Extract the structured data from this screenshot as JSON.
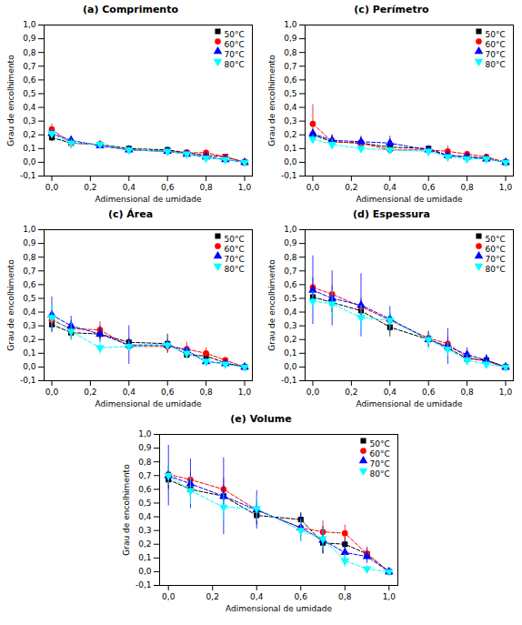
{
  "chart_data": [
    {
      "type": "line",
      "title": "(a) Comprimento",
      "xlabel": "Adimensional de umidade",
      "ylabel": "Grau de encolhimento",
      "x": [
        0.0,
        0.1,
        0.25,
        0.4,
        0.6,
        0.7,
        0.8,
        0.9,
        1.0
      ],
      "series": [
        {
          "name": "50°C",
          "color": "black",
          "marker": "square",
          "line_style": "dashed",
          "values": [
            0.18,
            0.14,
            0.13,
            0.1,
            0.09,
            0.07,
            0.05,
            0.04,
            0.0
          ],
          "yerr": [
            0.03,
            0.03,
            0.02,
            0.02,
            0.02,
            0.02,
            0.015,
            0.015,
            0.005
          ]
        },
        {
          "name": "60°C",
          "color": "red",
          "marker": "circle",
          "line_style": "dashed",
          "values": [
            0.24,
            0.14,
            0.13,
            0.09,
            0.08,
            0.07,
            0.07,
            0.04,
            0.0
          ],
          "yerr": [
            0.04,
            0.04,
            0.03,
            0.02,
            0.02,
            0.02,
            0.02,
            0.015,
            0.005
          ]
        },
        {
          "name": "70°C",
          "color": "blue",
          "marker": "triangle-up",
          "line_style": "dashed",
          "values": [
            0.21,
            0.16,
            0.12,
            0.09,
            0.08,
            0.06,
            0.04,
            0.02,
            0.0
          ],
          "yerr": [
            0.03,
            0.03,
            0.02,
            0.015,
            0.015,
            0.015,
            0.015,
            0.01,
            0.005
          ]
        },
        {
          "name": "80°C",
          "color": "cyan",
          "marker": "triangle-down",
          "line_style": "dashed",
          "values": [
            0.21,
            0.14,
            0.13,
            0.09,
            0.08,
            0.06,
            0.03,
            0.02,
            0.0
          ],
          "yerr": [
            0.03,
            0.03,
            0.02,
            0.02,
            0.015,
            0.015,
            0.015,
            0.01,
            0.005
          ]
        }
      ],
      "xlim": [
        -0.04,
        1.04
      ],
      "xticks": [
        {
          "value": 0.0,
          "label": "0,0"
        },
        {
          "value": 0.2,
          "label": "0,2"
        },
        {
          "value": 0.4,
          "label": "0,4"
        },
        {
          "value": 0.6,
          "label": "0,6"
        },
        {
          "value": 0.8,
          "label": "0,8"
        },
        {
          "value": 1.0,
          "label": "1,0"
        }
      ],
      "ylim": [
        -0.1,
        1.0
      ],
      "yticks": [
        {
          "value": -0.1,
          "label": "-0,1"
        },
        {
          "value": 0.0,
          "label": "0,0"
        },
        {
          "value": 0.1,
          "label": "0,1"
        },
        {
          "value": 0.2,
          "label": "0,2"
        },
        {
          "value": 0.3,
          "label": "0,3"
        },
        {
          "value": 0.4,
          "label": "0,4"
        },
        {
          "value": 0.5,
          "label": "0,5"
        },
        {
          "value": 0.6,
          "label": "0,6"
        },
        {
          "value": 0.7,
          "label": "0,7"
        },
        {
          "value": 0.8,
          "label": "0,8"
        },
        {
          "value": 0.9,
          "label": "0,9"
        },
        {
          "value": 1.0,
          "label": "1,0"
        }
      ],
      "legend": "upper right",
      "grid": false
    },
    {
      "type": "line",
      "title": "(c) Perímetro",
      "xlabel": "Adimensional de umidade",
      "ylabel": "Grau de encolhimento",
      "x": [
        0.0,
        0.1,
        0.25,
        0.4,
        0.6,
        0.7,
        0.8,
        0.9,
        1.0
      ],
      "series": [
        {
          "name": "50°C",
          "color": "black",
          "marker": "square",
          "line_style": "dashed",
          "values": [
            0.2,
            0.15,
            0.14,
            0.11,
            0.1,
            0.05,
            0.04,
            0.03,
            0.0
          ],
          "yerr": [
            0.03,
            0.04,
            0.03,
            0.02,
            0.02,
            0.02,
            0.02,
            0.015,
            0.005
          ]
        },
        {
          "name": "60°C",
          "color": "red",
          "marker": "circle",
          "line_style": "dashed",
          "values": [
            0.28,
            0.15,
            0.14,
            0.09,
            0.09,
            0.08,
            0.06,
            0.04,
            0.0
          ],
          "yerr": [
            0.14,
            0.05,
            0.04,
            0.02,
            0.025,
            0.04,
            0.02,
            0.015,
            0.005
          ]
        },
        {
          "name": "70°C",
          "color": "blue",
          "marker": "triangle-up",
          "line_style": "dashed",
          "values": [
            0.21,
            0.16,
            0.15,
            0.14,
            0.09,
            0.05,
            0.04,
            0.025,
            0.0
          ],
          "yerr": [
            0.03,
            0.04,
            0.04,
            0.05,
            0.02,
            0.02,
            0.015,
            0.01,
            0.005
          ]
        },
        {
          "name": "80°C",
          "color": "cyan",
          "marker": "triangle-down",
          "line_style": "dashed",
          "values": [
            0.17,
            0.13,
            0.1,
            0.09,
            0.08,
            0.04,
            0.025,
            0.025,
            0.0
          ],
          "yerr": [
            0.03,
            0.04,
            0.03,
            0.02,
            0.02,
            0.015,
            0.015,
            0.01,
            0.005
          ]
        }
      ],
      "xlim": [
        -0.04,
        1.04
      ],
      "xticks": [
        {
          "value": 0.0,
          "label": "0,0"
        },
        {
          "value": 0.2,
          "label": "0,2"
        },
        {
          "value": 0.4,
          "label": "0,4"
        },
        {
          "value": 0.6,
          "label": "0,6"
        },
        {
          "value": 0.8,
          "label": "0,8"
        },
        {
          "value": 1.0,
          "label": "1,0"
        }
      ],
      "ylim": [
        -0.1,
        1.0
      ],
      "yticks": [
        {
          "value": -0.1,
          "label": "-0,1"
        },
        {
          "value": 0.0,
          "label": "0,0"
        },
        {
          "value": 0.1,
          "label": "0,1"
        },
        {
          "value": 0.2,
          "label": "0,2"
        },
        {
          "value": 0.3,
          "label": "0,3"
        },
        {
          "value": 0.4,
          "label": "0,4"
        },
        {
          "value": 0.5,
          "label": "0,5"
        },
        {
          "value": 0.6,
          "label": "0,6"
        },
        {
          "value": 0.7,
          "label": "0,7"
        },
        {
          "value": 0.8,
          "label": "0,8"
        },
        {
          "value": 0.9,
          "label": "0,9"
        },
        {
          "value": 1.0,
          "label": "1,0"
        }
      ],
      "legend": "upper right",
      "grid": false
    },
    {
      "type": "line",
      "title": "(c) Área",
      "xlabel": "Adimensional de umidade",
      "ylabel": "Grau de encolhimento",
      "x": [
        0.0,
        0.1,
        0.25,
        0.4,
        0.6,
        0.7,
        0.8,
        0.9,
        1.0
      ],
      "series": [
        {
          "name": "50°C",
          "color": "black",
          "marker": "square",
          "line_style": "dashed",
          "values": [
            0.31,
            0.25,
            0.24,
            0.18,
            0.17,
            0.09,
            0.08,
            0.03,
            0.0
          ],
          "yerr": [
            0.05,
            0.05,
            0.04,
            0.03,
            0.07,
            0.03,
            0.04,
            0.02,
            0.005
          ]
        },
        {
          "name": "60°C",
          "color": "red",
          "marker": "circle",
          "line_style": "dashed",
          "values": [
            0.34,
            0.28,
            0.27,
            0.15,
            0.15,
            0.13,
            0.1,
            0.05,
            0.0
          ],
          "yerr": [
            0.04,
            0.06,
            0.06,
            0.04,
            0.04,
            0.05,
            0.04,
            0.02,
            0.005
          ]
        },
        {
          "name": "70°C",
          "color": "blue",
          "marker": "triangle-up",
          "line_style": "dashed",
          "values": [
            0.38,
            0.3,
            0.24,
            0.16,
            0.16,
            0.12,
            0.04,
            0.025,
            0.0
          ],
          "yerr": [
            0.13,
            0.07,
            0.06,
            0.14,
            0.04,
            0.03,
            0.025,
            0.015,
            0.005
          ]
        },
        {
          "name": "80°C",
          "color": "cyan",
          "marker": "triangle-down",
          "line_style": "dashed",
          "values": [
            0.36,
            0.26,
            0.14,
            0.15,
            0.16,
            0.1,
            0.04,
            0.02,
            0.0
          ],
          "yerr": [
            0.1,
            0.07,
            0.05,
            0.04,
            0.03,
            0.04,
            0.02,
            0.015,
            0.005
          ]
        }
      ],
      "xlim": [
        -0.04,
        1.04
      ],
      "xticks": [
        {
          "value": 0.0,
          "label": "0,0"
        },
        {
          "value": 0.2,
          "label": "0,2"
        },
        {
          "value": 0.4,
          "label": "0,4"
        },
        {
          "value": 0.6,
          "label": "0,6"
        },
        {
          "value": 0.8,
          "label": "0,8"
        },
        {
          "value": 1.0,
          "label": "1,0"
        }
      ],
      "ylim": [
        -0.1,
        1.0
      ],
      "yticks": [
        {
          "value": -0.1,
          "label": "-0,1"
        },
        {
          "value": 0.0,
          "label": "0,0"
        },
        {
          "value": 0.1,
          "label": "0,1"
        },
        {
          "value": 0.2,
          "label": "0,2"
        },
        {
          "value": 0.3,
          "label": "0,3"
        },
        {
          "value": 0.4,
          "label": "0,4"
        },
        {
          "value": 0.5,
          "label": "0,5"
        },
        {
          "value": 0.6,
          "label": "0,6"
        },
        {
          "value": 0.7,
          "label": "0,7"
        },
        {
          "value": 0.8,
          "label": "0,8"
        },
        {
          "value": 0.9,
          "label": "0,9"
        },
        {
          "value": 1.0,
          "label": "1,0"
        }
      ],
      "legend": "upper right",
      "grid": false
    },
    {
      "type": "line",
      "title": "(d) Espessura",
      "xlabel": "Adimensional de umidade",
      "ylabel": "Grau de encolhimento",
      "x": [
        0.0,
        0.1,
        0.25,
        0.4,
        0.6,
        0.7,
        0.8,
        0.9,
        1.0
      ],
      "series": [
        {
          "name": "50°C",
          "color": "black",
          "marker": "square",
          "line_style": "dashed",
          "values": [
            0.51,
            0.47,
            0.41,
            0.29,
            0.2,
            0.14,
            0.06,
            0.05,
            0.0
          ],
          "yerr": [
            0.05,
            0.07,
            0.06,
            0.07,
            0.05,
            0.04,
            0.04,
            0.035,
            0.005
          ]
        },
        {
          "name": "60°C",
          "color": "red",
          "marker": "circle",
          "line_style": "dashed",
          "values": [
            0.58,
            0.53,
            0.44,
            0.34,
            0.21,
            0.17,
            0.07,
            0.04,
            0.0
          ],
          "yerr": [
            0.07,
            0.06,
            0.06,
            0.06,
            0.05,
            0.05,
            0.05,
            0.04,
            0.005
          ]
        },
        {
          "name": "70°C",
          "color": "blue",
          "marker": "triangle-up",
          "line_style": "dashed",
          "values": [
            0.56,
            0.5,
            0.45,
            0.35,
            0.2,
            0.15,
            0.09,
            0.05,
            0.0
          ],
          "yerr": [
            0.25,
            0.2,
            0.23,
            0.09,
            0.06,
            0.13,
            0.05,
            0.04,
            0.005
          ]
        },
        {
          "name": "80°C",
          "color": "cyan",
          "marker": "triangle-down",
          "line_style": "dashed",
          "values": [
            0.48,
            0.46,
            0.36,
            0.34,
            0.2,
            0.13,
            0.05,
            0.02,
            0.0
          ],
          "yerr": [
            0.07,
            0.1,
            0.09,
            0.07,
            0.06,
            0.05,
            0.04,
            0.03,
            0.005
          ]
        }
      ],
      "xlim": [
        -0.04,
        1.04
      ],
      "xticks": [
        {
          "value": 0.0,
          "label": "0,0"
        },
        {
          "value": 0.2,
          "label": "0,2"
        },
        {
          "value": 0.4,
          "label": "0,4"
        },
        {
          "value": 0.6,
          "label": "0,6"
        },
        {
          "value": 0.8,
          "label": "0,8"
        },
        {
          "value": 1.0,
          "label": "1,0"
        }
      ],
      "ylim": [
        -0.1,
        1.0
      ],
      "yticks": [
        {
          "value": -0.1,
          "label": "-0,1"
        },
        {
          "value": 0.0,
          "label": "0,0"
        },
        {
          "value": 0.1,
          "label": "0,1"
        },
        {
          "value": 0.2,
          "label": "0,2"
        },
        {
          "value": 0.3,
          "label": "0,3"
        },
        {
          "value": 0.4,
          "label": "0,4"
        },
        {
          "value": 0.5,
          "label": "0,5"
        },
        {
          "value": 0.6,
          "label": "0,6"
        },
        {
          "value": 0.7,
          "label": "0,7"
        },
        {
          "value": 0.8,
          "label": "0,8"
        },
        {
          "value": 0.9,
          "label": "0,9"
        },
        {
          "value": 1.0,
          "label": "1,0"
        }
      ],
      "legend": "upper right",
      "grid": false
    },
    {
      "type": "line",
      "title": "(e) Volume",
      "xlabel": "Adimensional de umidade",
      "ylabel": "Grau de encolhimento",
      "x": [
        0.0,
        0.1,
        0.25,
        0.4,
        0.6,
        0.7,
        0.8,
        0.9,
        1.0
      ],
      "series": [
        {
          "name": "50°C",
          "color": "black",
          "marker": "square",
          "line_style": "dashed",
          "values": [
            0.67,
            0.6,
            0.55,
            0.41,
            0.38,
            0.21,
            0.2,
            0.13,
            0.0
          ],
          "yerr": [
            0.07,
            0.06,
            0.08,
            0.07,
            0.05,
            0.08,
            0.05,
            0.04,
            0.005
          ]
        },
        {
          "name": "60°C",
          "color": "red",
          "marker": "circle",
          "line_style": "dashed",
          "values": [
            0.71,
            0.67,
            0.6,
            0.45,
            0.32,
            0.29,
            0.28,
            0.13,
            0.0
          ],
          "yerr": [
            0.06,
            0.05,
            0.08,
            0.07,
            0.06,
            0.08,
            0.06,
            0.05,
            0.005
          ]
        },
        {
          "name": "70°C",
          "color": "blue",
          "marker": "triangle-up",
          "line_style": "dashed",
          "values": [
            0.7,
            0.64,
            0.55,
            0.45,
            0.32,
            0.23,
            0.14,
            0.11,
            0.0
          ],
          "yerr": [
            0.22,
            0.18,
            0.28,
            0.14,
            0.1,
            0.1,
            0.08,
            0.05,
            0.005
          ]
        },
        {
          "name": "80°C",
          "color": "cyan",
          "marker": "triangle-down",
          "line_style": "dashed",
          "values": [
            0.7,
            0.59,
            0.47,
            0.46,
            0.3,
            0.24,
            0.08,
            0.02,
            0.0
          ],
          "yerr": [
            0.07,
            0.1,
            0.1,
            0.09,
            0.08,
            0.08,
            0.05,
            0.025,
            0.005
          ]
        }
      ],
      "xlim": [
        -0.04,
        1.04
      ],
      "xticks": [
        {
          "value": 0.0,
          "label": "0,0"
        },
        {
          "value": 0.2,
          "label": "0,2"
        },
        {
          "value": 0.4,
          "label": "0,4"
        },
        {
          "value": 0.6,
          "label": "0,6"
        },
        {
          "value": 0.8,
          "label": "0,8"
        },
        {
          "value": 1.0,
          "label": "1,0"
        }
      ],
      "ylim": [
        -0.1,
        1.0
      ],
      "yticks": [
        {
          "value": -0.1,
          "label": "-0,1"
        },
        {
          "value": 0.0,
          "label": "0,0"
        },
        {
          "value": 0.1,
          "label": "0,1"
        },
        {
          "value": 0.2,
          "label": "0,2"
        },
        {
          "value": 0.3,
          "label": "0,3"
        },
        {
          "value": 0.4,
          "label": "0,4"
        },
        {
          "value": 0.5,
          "label": "0,5"
        },
        {
          "value": 0.6,
          "label": "0,6"
        },
        {
          "value": 0.7,
          "label": "0,7"
        },
        {
          "value": 0.8,
          "label": "0,8"
        },
        {
          "value": 0.9,
          "label": "0,9"
        },
        {
          "value": 1.0,
          "label": "1,0"
        }
      ],
      "legend": "upper right",
      "grid": false
    }
  ]
}
